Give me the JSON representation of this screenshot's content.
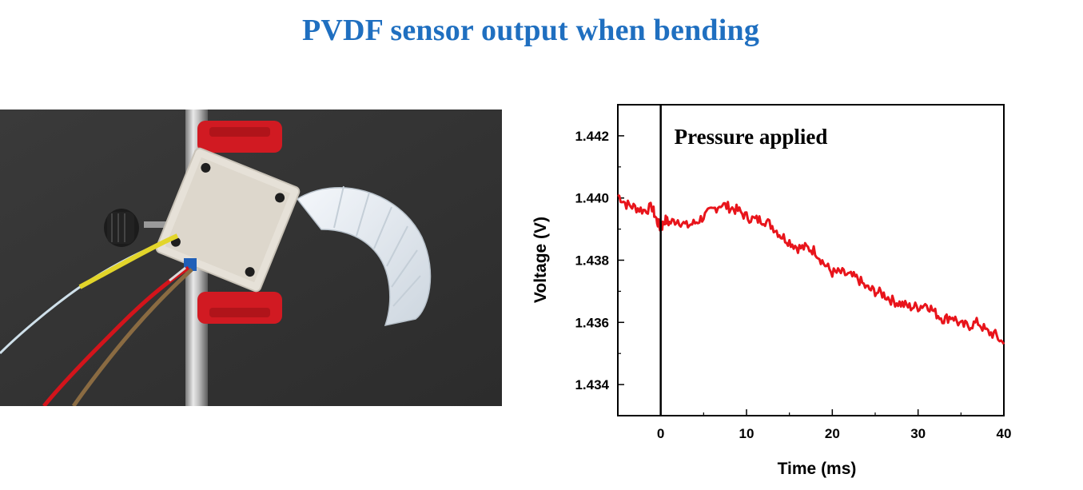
{
  "page": {
    "title": "PVDF sensor output when bending",
    "title_color": "#1f6fc0"
  },
  "photo": {
    "subject": "PVDF sensor in 3D-printed clamp on a stand rod with bending soft silicone finger and wires"
  },
  "chart_data": {
    "type": "line",
    "title": "",
    "xlabel": "Time (ms)",
    "ylabel": "Voltage (V)",
    "xlim": [
      -5,
      40
    ],
    "ylim": [
      1.433,
      1.443
    ],
    "xticks": [
      0,
      10,
      20,
      30,
      40
    ],
    "yticks": [
      1.434,
      1.436,
      1.438,
      1.44,
      1.442
    ],
    "xtick_labels": [
      "0",
      "10",
      "20",
      "30",
      "40"
    ],
    "ytick_labels": [
      "1.434",
      "1.436",
      "1.438",
      "1.440",
      "1.442"
    ],
    "grid": false,
    "legend": "none",
    "line_color": "#e8141b",
    "annotations": [
      {
        "text": "Pressure applied",
        "x": 0
      }
    ],
    "marker_line": {
      "x": 0,
      "color": "#000000"
    },
    "series": [
      {
        "x": [
          -5,
          -4,
          -3,
          -2,
          -1,
          -0.5,
          0,
          0.5,
          1,
          2,
          3,
          4,
          5,
          6,
          7,
          8,
          9,
          10,
          11,
          12,
          13,
          14,
          15,
          16,
          17,
          18,
          19,
          20,
          21,
          22,
          23,
          24,
          25,
          26,
          27,
          28,
          29,
          30,
          31,
          32,
          33,
          34,
          35,
          36,
          37,
          38,
          39,
          40
        ],
        "values": [
          1.4401,
          1.4398,
          1.4397,
          1.4396,
          1.4397,
          1.4393,
          1.439,
          1.4393,
          1.4392,
          1.4393,
          1.4391,
          1.4392,
          1.4394,
          1.4396,
          1.4398,
          1.4397,
          1.4396,
          1.4394,
          1.4393,
          1.4393,
          1.4391,
          1.4388,
          1.4386,
          1.4384,
          1.4384,
          1.4383,
          1.4379,
          1.4376,
          1.4376,
          1.4375,
          1.4374,
          1.4371,
          1.437,
          1.4369,
          1.4367,
          1.4366,
          1.4365,
          1.4365,
          1.4366,
          1.4363,
          1.4361,
          1.4362,
          1.4359,
          1.4359,
          1.436,
          1.4357,
          1.4356,
          1.4353
        ]
      }
    ]
  }
}
